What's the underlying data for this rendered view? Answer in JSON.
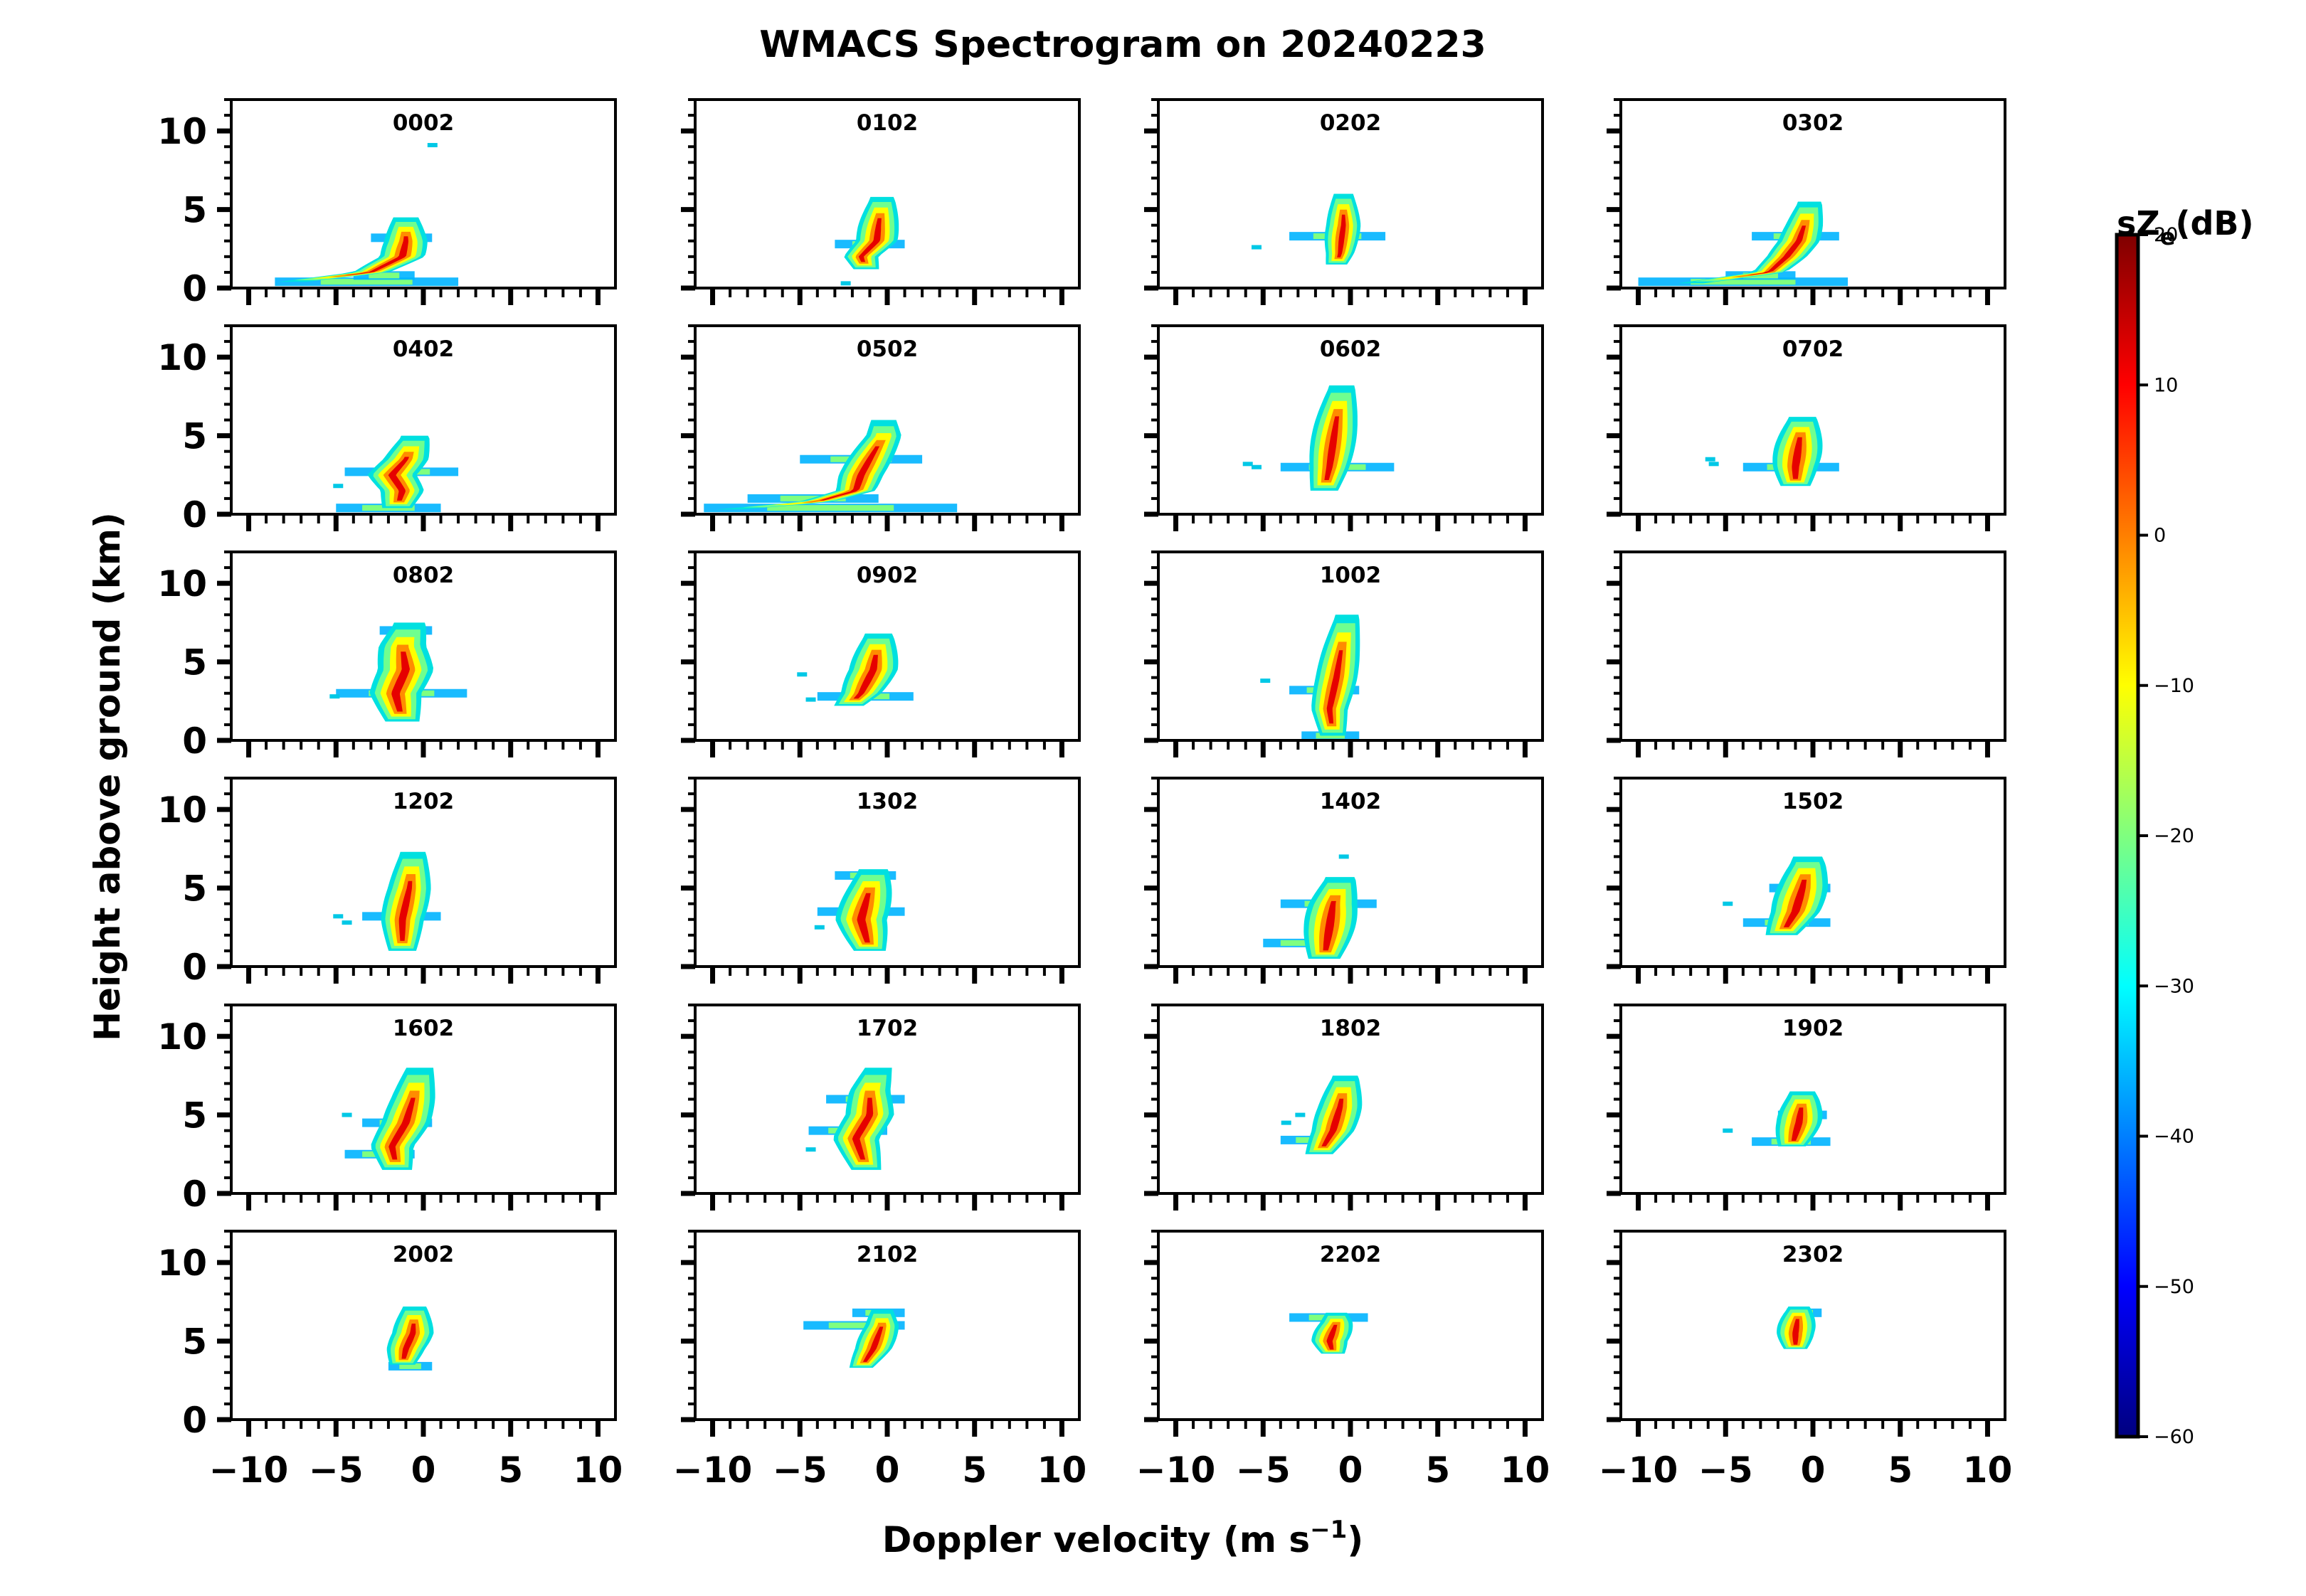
{
  "chart_data": {
    "type": "heatmap",
    "title": "WMACS Spectrogram on 20240223",
    "xlabel": "Doppler velocity (m s",
    "xlabel_sup": "−1",
    "xlabel_close": ")",
    "ylabel": "Height above ground (km)",
    "xlim": [
      -11,
      11
    ],
    "ylim": [
      0,
      12
    ],
    "xticks": [
      -10,
      -5,
      0,
      5,
      10
    ],
    "xtick_labels": [
      "−10",
      "−5",
      "0",
      "5",
      "10"
    ],
    "yticks": [
      0,
      5,
      10
    ],
    "ytick_labels": [
      "0",
      "5",
      "10"
    ],
    "colorbar": {
      "label": "sZ",
      "label_sub": "e",
      "label_unit": "(dB)",
      "range": [
        -60,
        20
      ],
      "ticks": [
        -60,
        -50,
        -40,
        -30,
        -20,
        -10,
        0,
        10,
        20
      ],
      "tick_labels": [
        "−60",
        "−50",
        "−40",
        "−30",
        "−20",
        "−10",
        "0",
        "10",
        "20"
      ],
      "colormap": [
        "#00007f",
        "#0000ff",
        "#007fff",
        "#00ffff",
        "#7fff7f",
        "#ffff00",
        "#ff7f00",
        "#ff0000",
        "#7f0000"
      ]
    },
    "panels": [
      {
        "label": "0002",
        "core": [
          [
            0.4,
            -7.5
          ],
          [
            1.0,
            -3.0
          ],
          [
            2.0,
            -1.2
          ],
          [
            3.0,
            -1.0
          ],
          [
            4.0,
            -1.0
          ]
        ],
        "width": 1.3,
        "top": 4.5,
        "layers": [
          [
            0.4,
            -8.5,
            2.0
          ],
          [
            0.8,
            -4.0,
            -0.5
          ],
          [
            3.2,
            -3.0,
            0.5
          ]
        ],
        "echoes": [
          [
            0.4,
            9.1
          ]
        ]
      },
      {
        "label": "0102",
        "core": [
          [
            1.2,
            -1.2
          ],
          [
            2.0,
            -1.5
          ],
          [
            3.0,
            -0.6
          ],
          [
            4.0,
            -0.5
          ],
          [
            5.5,
            -0.3
          ]
        ],
        "width": 1.2,
        "top": 5.8,
        "layers": [
          [
            2.8,
            -3.0,
            1.0
          ]
        ],
        "echoes": [
          [
            -2.5,
            0.3
          ]
        ]
      },
      {
        "label": "0202",
        "core": [
          [
            1.5,
            -0.8
          ],
          [
            2.2,
            -0.6
          ],
          [
            3.2,
            -0.5
          ],
          [
            4.0,
            -0.4
          ],
          [
            5.8,
            -0.4
          ]
        ],
        "width": 1.0,
        "top": 6.0,
        "layers": [
          [
            3.3,
            -3.5,
            2.0
          ]
        ],
        "echoes": [
          [
            -5.5,
            2.6
          ]
        ]
      },
      {
        "label": "0302",
        "core": [
          [
            0.3,
            -7.0
          ],
          [
            1.0,
            -2.5
          ],
          [
            2.0,
            -1.5
          ],
          [
            3.0,
            -0.8
          ],
          [
            4.0,
            -0.5
          ],
          [
            5.3,
            -0.2
          ]
        ],
        "width": 1.2,
        "top": 5.5,
        "layers": [
          [
            0.4,
            -10.0,
            2.0
          ],
          [
            0.8,
            -5.0,
            -1.0
          ],
          [
            3.3,
            -3.5,
            1.5
          ]
        ],
        "echoes": []
      },
      {
        "label": "0402",
        "core": [
          [
            0.4,
            -1.5
          ],
          [
            1.5,
            -1.2
          ],
          [
            2.5,
            -1.8
          ],
          [
            3.5,
            -1.0
          ],
          [
            4.8,
            -0.5
          ]
        ],
        "width": 1.4,
        "top": 5.0,
        "layers": [
          [
            0.4,
            -5.0,
            1.0
          ],
          [
            2.7,
            -4.5,
            2.0
          ]
        ],
        "echoes": [
          [
            -5.0,
            1.8
          ]
        ]
      },
      {
        "label": "0502",
        "core": [
          [
            0.3,
            -9.0
          ],
          [
            0.8,
            -4.0
          ],
          [
            1.5,
            -1.8
          ],
          [
            2.5,
            -1.5
          ],
          [
            3.5,
            -1.0
          ],
          [
            5.0,
            -0.2
          ]
        ],
        "width": 1.3,
        "top": 6.0,
        "layers": [
          [
            0.4,
            -10.5,
            4.0
          ],
          [
            1.0,
            -8.0,
            -0.5
          ],
          [
            3.5,
            -5.0,
            2.0
          ]
        ],
        "echoes": []
      },
      {
        "label": "0602",
        "core": [
          [
            1.5,
            -1.5
          ],
          [
            3.0,
            -1.2
          ],
          [
            4.5,
            -1.0
          ],
          [
            6.0,
            -0.8
          ],
          [
            8.0,
            -0.5
          ]
        ],
        "width": 1.3,
        "top": 8.2,
        "layers": [
          [
            3.0,
            -4.0,
            2.5
          ]
        ],
        "echoes": [
          [
            -5.5,
            3.0
          ],
          [
            -6.0,
            3.2
          ]
        ]
      },
      {
        "label": "0702",
        "core": [
          [
            1.8,
            -1.0
          ],
          [
            3.0,
            -1.0
          ],
          [
            4.5,
            -0.8
          ],
          [
            6.0,
            -0.6
          ]
        ],
        "width": 1.4,
        "top": 6.2,
        "layers": [
          [
            3.0,
            -4.0,
            1.5
          ]
        ],
        "echoes": [
          [
            -6.0,
            3.5
          ],
          [
            -5.8,
            3.2
          ]
        ]
      },
      {
        "label": "0802",
        "core": [
          [
            1.2,
            -1.2
          ],
          [
            3.0,
            -1.6
          ],
          [
            4.5,
            -1.0
          ],
          [
            6.0,
            -1.2
          ],
          [
            7.3,
            -0.8
          ]
        ],
        "width": 1.6,
        "top": 7.5,
        "layers": [
          [
            3.0,
            -5.0,
            2.5
          ],
          [
            7.0,
            -2.5,
            0.5
          ]
        ],
        "echoes": [
          [
            -5.2,
            2.8
          ]
        ]
      },
      {
        "label": "0902",
        "core": [
          [
            2.2,
            -2.2
          ],
          [
            3.0,
            -1.5
          ],
          [
            4.5,
            -0.8
          ],
          [
            6.5,
            -0.5
          ]
        ],
        "width": 1.4,
        "top": 6.8,
        "layers": [
          [
            2.8,
            -4.0,
            1.5
          ]
        ],
        "echoes": [
          [
            -5.0,
            4.2
          ],
          [
            -4.5,
            2.6
          ]
        ]
      },
      {
        "label": "1002",
        "core": [
          [
            0.3,
            -1.0
          ],
          [
            2.0,
            -1.2
          ],
          [
            4.0,
            -0.8
          ],
          [
            6.0,
            -0.5
          ],
          [
            7.8,
            -0.2
          ]
        ],
        "width": 1.2,
        "top": 8.0,
        "layers": [
          [
            0.3,
            -2.8,
            0.5
          ],
          [
            3.2,
            -3.5,
            0.5
          ]
        ],
        "echoes": [
          [
            -5.0,
            3.8
          ]
        ]
      },
      {
        "label": "",
        "core": [],
        "width": 0,
        "top": 0,
        "layers": [],
        "echoes": []
      },
      {
        "label": "1202",
        "core": [
          [
            1.0,
            -1.2
          ],
          [
            3.0,
            -1.2
          ],
          [
            5.0,
            -0.8
          ],
          [
            7.0,
            -0.6
          ]
        ],
        "width": 1.3,
        "top": 7.3,
        "layers": [
          [
            3.2,
            -3.5,
            1.0
          ]
        ],
        "echoes": [
          [
            -5.0,
            3.2
          ],
          [
            -4.5,
            2.8
          ]
        ]
      },
      {
        "label": "1302",
        "core": [
          [
            1.0,
            -1.0
          ],
          [
            3.0,
            -1.5
          ],
          [
            5.0,
            -1.0
          ],
          [
            6.0,
            -0.8
          ]
        ],
        "width": 1.5,
        "top": 6.2,
        "layers": [
          [
            5.8,
            -3.0,
            0.5
          ],
          [
            3.5,
            -4.0,
            1.0
          ]
        ],
        "echoes": [
          [
            -4.0,
            2.5
          ]
        ]
      },
      {
        "label": "1402",
        "core": [
          [
            0.5,
            -1.5
          ],
          [
            2.5,
            -1.2
          ],
          [
            4.0,
            -1.0
          ],
          [
            5.5,
            -0.6
          ]
        ],
        "width": 1.5,
        "top": 5.7,
        "layers": [
          [
            4.0,
            -4.0,
            1.5
          ],
          [
            1.5,
            -5.0,
            -1.0
          ]
        ],
        "echoes": [
          [
            -0.5,
            7.0
          ]
        ]
      },
      {
        "label": "1502",
        "core": [
          [
            2.0,
            -1.8
          ],
          [
            3.5,
            -1.0
          ],
          [
            5.0,
            -0.6
          ],
          [
            6.5,
            -0.3
          ]
        ],
        "width": 1.5,
        "top": 7.0,
        "layers": [
          [
            2.8,
            -4.0,
            1.0
          ],
          [
            5.0,
            -2.5,
            1.0
          ]
        ],
        "echoes": [
          [
            -5.0,
            4.0
          ]
        ]
      },
      {
        "label": "1602",
        "core": [
          [
            1.5,
            -1.5
          ],
          [
            3.0,
            -1.8
          ],
          [
            4.5,
            -1.0
          ],
          [
            6.0,
            -0.6
          ],
          [
            8.0,
            -0.2
          ]
        ],
        "width": 1.4,
        "top": 8.0,
        "layers": [
          [
            2.5,
            -4.5,
            -0.5
          ],
          [
            4.5,
            -3.5,
            0.5
          ]
        ],
        "echoes": [
          [
            -4.5,
            5.0
          ]
        ]
      },
      {
        "label": "1702",
        "core": [
          [
            1.5,
            -1.2
          ],
          [
            3.5,
            -1.8
          ],
          [
            5.0,
            -1.0
          ],
          [
            6.5,
            -1.0
          ],
          [
            8.0,
            -0.5
          ]
        ],
        "width": 1.4,
        "top": 8.0,
        "layers": [
          [
            6.0,
            -3.5,
            1.0
          ],
          [
            4.0,
            -4.5,
            0.0
          ]
        ],
        "echoes": [
          [
            -4.5,
            2.8
          ]
        ]
      },
      {
        "label": "1802",
        "core": [
          [
            2.5,
            -1.8
          ],
          [
            4.0,
            -1.0
          ],
          [
            5.5,
            -0.6
          ],
          [
            7.3,
            -0.3
          ]
        ],
        "width": 1.3,
        "top": 7.5,
        "layers": [
          [
            3.4,
            -4.0,
            -0.5
          ]
        ],
        "echoes": [
          [
            -3.8,
            4.5
          ],
          [
            -3.0,
            5.0
          ]
        ]
      },
      {
        "label": "1902",
        "core": [
          [
            3.0,
            -1.2
          ],
          [
            4.5,
            -0.8
          ],
          [
            6.0,
            -0.6
          ]
        ],
        "width": 1.3,
        "top": 6.5,
        "layers": [
          [
            3.3,
            -3.5,
            1.0
          ],
          [
            5.0,
            -2.0,
            0.8
          ]
        ],
        "echoes": [
          [
            -5.0,
            4.0
          ]
        ]
      },
      {
        "label": "2002",
        "core": [
          [
            3.5,
            -1.2
          ],
          [
            4.5,
            -1.0
          ],
          [
            5.5,
            -0.6
          ],
          [
            7.0,
            -0.5
          ]
        ],
        "width": 1.2,
        "top": 7.2,
        "layers": [
          [
            3.4,
            -2.0,
            0.5
          ]
        ],
        "echoes": []
      },
      {
        "label": "2102",
        "core": [
          [
            3.3,
            -1.5
          ],
          [
            4.5,
            -0.8
          ],
          [
            6.0,
            -0.3
          ]
        ],
        "width": 1.1,
        "top": 7.0,
        "layers": [
          [
            6.0,
            -4.8,
            1.0
          ],
          [
            6.8,
            -2.0,
            1.0
          ]
        ],
        "echoes": []
      },
      {
        "label": "2202",
        "core": [
          [
            4.2,
            -1.0
          ],
          [
            5.0,
            -1.2
          ],
          [
            6.2,
            -0.8
          ]
        ],
        "width": 1.1,
        "top": 6.8,
        "layers": [
          [
            6.5,
            -3.5,
            1.0
          ]
        ],
        "echoes": []
      },
      {
        "label": "2302",
        "core": [
          [
            4.5,
            -1.0
          ],
          [
            5.5,
            -1.0
          ],
          [
            7.0,
            -0.8
          ]
        ],
        "width": 1.1,
        "top": 7.2,
        "layers": [
          [
            6.8,
            -1.5,
            0.5
          ]
        ],
        "echoes": []
      }
    ]
  }
}
